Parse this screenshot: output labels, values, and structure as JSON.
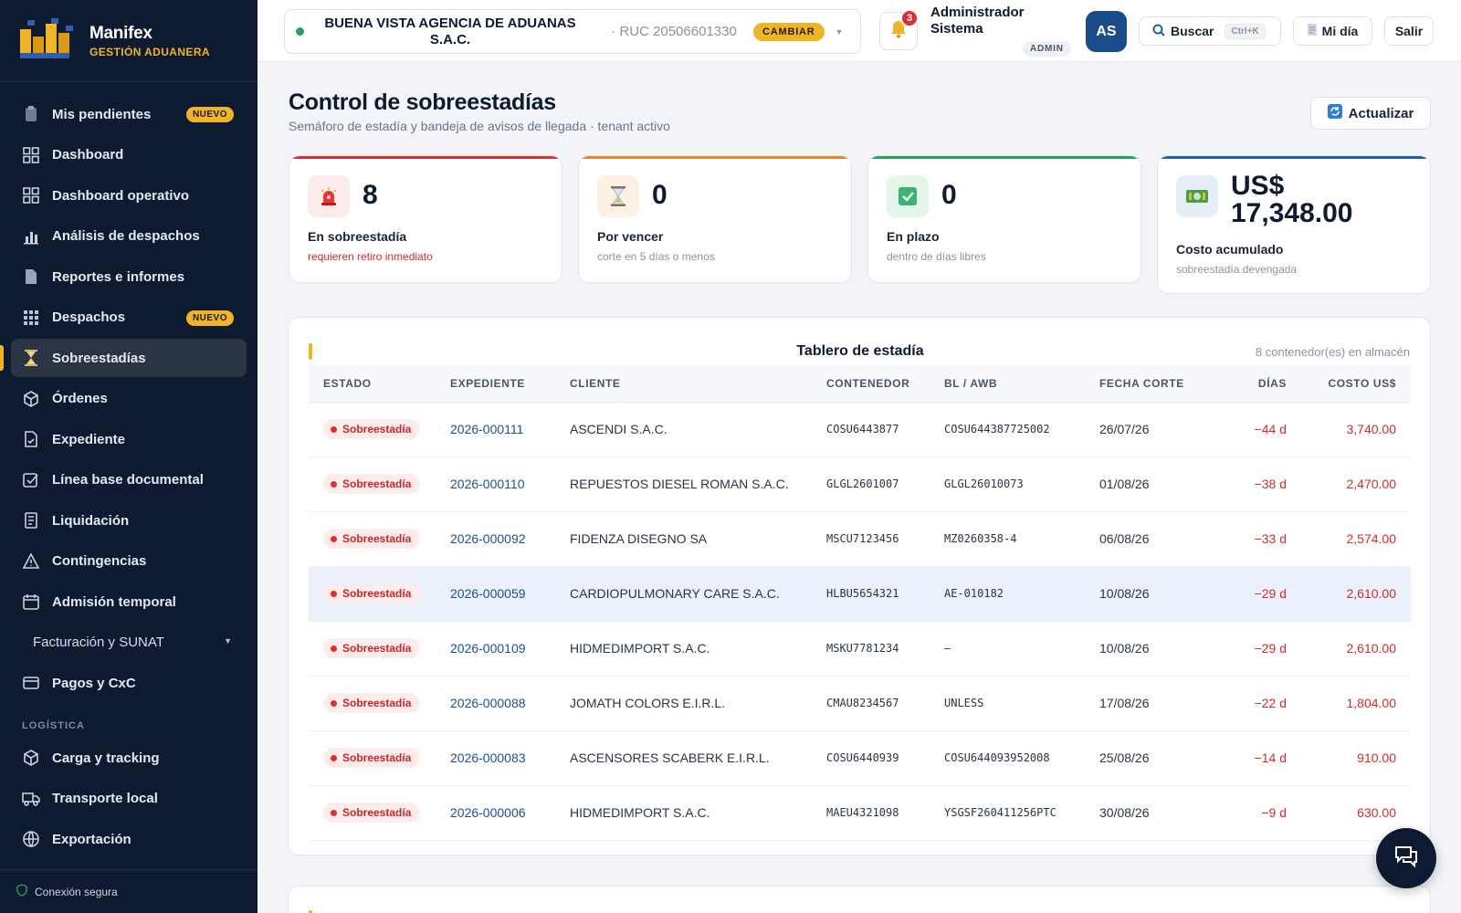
{
  "brand": {
    "name": "Manifex",
    "subtitle": "GESTIÓN ADUANERA"
  },
  "sidebar": {
    "items": [
      {
        "label": "Mis pendientes",
        "badge": "NUEVO",
        "icon": "clipboard-icon"
      },
      {
        "label": "Dashboard",
        "icon": "grid-icon"
      },
      {
        "label": "Dashboard operativo",
        "icon": "grid-icon"
      },
      {
        "label": "Análisis de despachos",
        "icon": "bar-chart-icon"
      },
      {
        "label": "Reportes e informes",
        "icon": "document-icon"
      },
      {
        "label": "Despachos",
        "badge": "NUEVO",
        "icon": "apps-icon"
      },
      {
        "label": "Sobreestadías",
        "icon": "hourglass-icon",
        "active": true
      },
      {
        "label": "Órdenes",
        "icon": "box-icon"
      },
      {
        "label": "Expediente",
        "icon": "file-icon"
      },
      {
        "label": "Línea base documental",
        "icon": "checkbox-icon"
      },
      {
        "label": "Liquidación",
        "icon": "receipt-icon"
      },
      {
        "label": "Contingencias",
        "icon": "warning-icon"
      },
      {
        "label": "Admisión temporal",
        "icon": "calendar-icon"
      },
      {
        "label": "Facturación y SUNAT",
        "icon": "chevron-down-icon"
      },
      {
        "label": "Pagos y CxC",
        "icon": "card-icon"
      }
    ],
    "section_logistica": "LOGÍSTICA",
    "logistica_items": [
      {
        "label": "Carga y tracking",
        "icon": "box-icon"
      },
      {
        "label": "Transporte local",
        "icon": "truck-icon"
      },
      {
        "label": "Exportación",
        "icon": "globe-icon"
      }
    ],
    "footer": "Conexión segura"
  },
  "topbar": {
    "tenant_name": "BUENA VISTA AGENCIA DE ADUANAS S.A.C.",
    "tenant_ruc": "· RUC 20506601330",
    "change_label": "CAMBIAR",
    "notifications": "3",
    "user_name": "Administrador Sistema",
    "user_role": "ADMIN",
    "avatar_initials": "AS",
    "search_label": "Buscar",
    "search_shortcut": "Ctrl+K",
    "my_day_label": "Mi día",
    "logout_label": "Salir"
  },
  "page": {
    "title": "Control de sobreestadías",
    "subtitle": "Semáforo de estadía y bandeja de avisos de llegada · tenant activo",
    "refresh_label": "Actualizar"
  },
  "kpis": [
    {
      "value": "8",
      "label": "En sobreestadía",
      "hint": "requieren retiro inmediato",
      "accent": "#dc2f2f"
    },
    {
      "value": "0",
      "label": "Por vencer",
      "hint": "corte en 5 días o menos",
      "accent": "#e8852b"
    },
    {
      "value": "0",
      "label": "En plazo",
      "hint": "dentro de días libres",
      "accent": "#22a35a"
    },
    {
      "value_line1": "US$",
      "value_line2": "17,348.00",
      "label": "Costo acumulado",
      "hint": "sobreestadía devengada",
      "accent": "#1f5fae"
    }
  ],
  "board": {
    "title": "Tablero de estadía",
    "count": "8 contenedor(es) en almacén",
    "columns": [
      "ESTADO",
      "EXPEDIENTE",
      "CLIENTE",
      "CONTENEDOR",
      "BL / AWB",
      "FECHA CORTE",
      "DÍAS",
      "COSTO US$"
    ],
    "rows": [
      {
        "status": "Sobreestadía",
        "expediente": "2026-000111",
        "cliente": "ASCENDI S.A.C.",
        "contenedor": "COSU6443877",
        "bl": "COSU644387725002",
        "fecha": "26/07/26",
        "dias": "−44 d",
        "costo": "3,740.00"
      },
      {
        "status": "Sobreestadía",
        "expediente": "2026-000110",
        "cliente": "REPUESTOS DIESEL ROMAN S.A.C.",
        "contenedor": "GLGL2601007",
        "bl": "GLGL26010073",
        "fecha": "01/08/26",
        "dias": "−38 d",
        "costo": "2,470.00"
      },
      {
        "status": "Sobreestadía",
        "expediente": "2026-000092",
        "cliente": "FIDENZA DISEGNO SA",
        "contenedor": "MSCU7123456",
        "bl": "MZ0260358-4",
        "fecha": "06/08/26",
        "dias": "−33 d",
        "costo": "2,574.00"
      },
      {
        "status": "Sobreestadía",
        "expediente": "2026-000059",
        "cliente": "CARDIOPULMONARY CARE S.A.C.",
        "contenedor": "HLBU5654321",
        "bl": "AE-010182",
        "fecha": "10/08/26",
        "dias": "−29 d",
        "costo": "2,610.00"
      },
      {
        "status": "Sobreestadía",
        "expediente": "2026-000109",
        "cliente": "HIDMEDIMPORT S.A.C.",
        "contenedor": "MSKU7781234",
        "bl": "—",
        "fecha": "10/08/26",
        "dias": "−29 d",
        "costo": "2,610.00"
      },
      {
        "status": "Sobreestadía",
        "expediente": "2026-000088",
        "cliente": "JOMATH COLORS E.I.R.L.",
        "contenedor": "CMAU8234567",
        "bl": "UNLESS",
        "fecha": "17/08/26",
        "dias": "−22 d",
        "costo": "1,804.00"
      },
      {
        "status": "Sobreestadía",
        "expediente": "2026-000083",
        "cliente": "ASCENSORES SCABERK E.I.R.L.",
        "contenedor": "COSU6440939",
        "bl": "COSU644093952008",
        "fecha": "25/08/26",
        "dias": "−14 d",
        "costo": "910.00"
      },
      {
        "status": "Sobreestadía",
        "expediente": "2026-000006",
        "cliente": "HIDMEDIMPORT S.A.C.",
        "contenedor": "MAEU4321098",
        "bl": "YSGSF260411256PTC",
        "fecha": "30/08/26",
        "dias": "−9 d",
        "costo": "630.00"
      }
    ]
  }
}
